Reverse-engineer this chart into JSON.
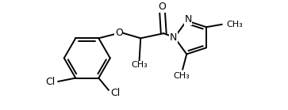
{
  "background_color": "#ffffff",
  "line_color": "#000000",
  "line_width": 1.4,
  "font_size": 9,
  "figure_width": 3.63,
  "figure_height": 1.39,
  "dpi": 100,
  "xlim": [
    0.0,
    7.2
  ],
  "ylim": [
    -1.2,
    2.8
  ]
}
